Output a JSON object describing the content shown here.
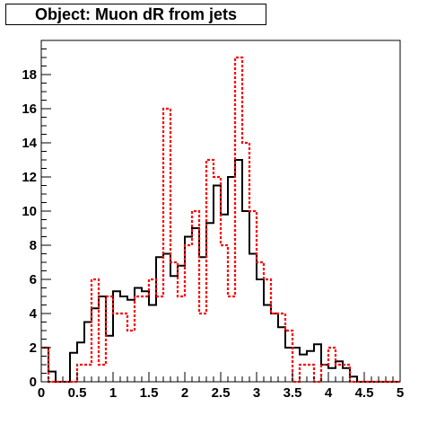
{
  "chart_data": {
    "type": "histogram",
    "title": "Object: Muon dR from jets",
    "xlabel": "",
    "ylabel": "",
    "xlim": [
      0,
      5
    ],
    "ylim": [
      0,
      20
    ],
    "bin_width": 0.1,
    "x_ticks": [
      "0",
      "0.5",
      "1",
      "1.5",
      "2",
      "2.5",
      "3",
      "3.5",
      "4",
      "4.5",
      "5"
    ],
    "y_ticks": [
      "0",
      "2",
      "4",
      "6",
      "8",
      "10",
      "12",
      "14",
      "16",
      "18"
    ],
    "grid": false,
    "legend": "none",
    "series": [
      {
        "style": "solid",
        "color": "#000000",
        "values": [
          2,
          0.6,
          0,
          0,
          1.7,
          2.3,
          3.5,
          4.3,
          5,
          2.7,
          5.3,
          5,
          4.8,
          5.5,
          5.3,
          4.5,
          7.3,
          7.5,
          6.2,
          6.8,
          8.5,
          9,
          7.3,
          9.3,
          11.5,
          9.8,
          12,
          13,
          10,
          7.5,
          6,
          4.5,
          4,
          3.2,
          2,
          2,
          1.6,
          1.8,
          2.2,
          1,
          0.8,
          1.2,
          0.8,
          0.3,
          0,
          0,
          0,
          0,
          0,
          0
        ]
      },
      {
        "style": "dashed",
        "color": "#ff0000",
        "values": [
          2,
          0,
          0,
          0,
          0,
          1,
          1,
          6,
          1,
          5,
          4,
          4,
          3,
          5,
          5,
          6,
          5,
          16,
          7,
          5,
          8,
          10,
          4,
          13,
          12,
          8,
          5,
          19,
          14,
          10,
          7,
          6,
          4,
          4,
          3,
          0,
          1,
          1,
          0,
          1,
          2,
          1,
          1,
          0,
          0,
          0,
          0,
          0,
          0,
          0
        ]
      }
    ]
  }
}
